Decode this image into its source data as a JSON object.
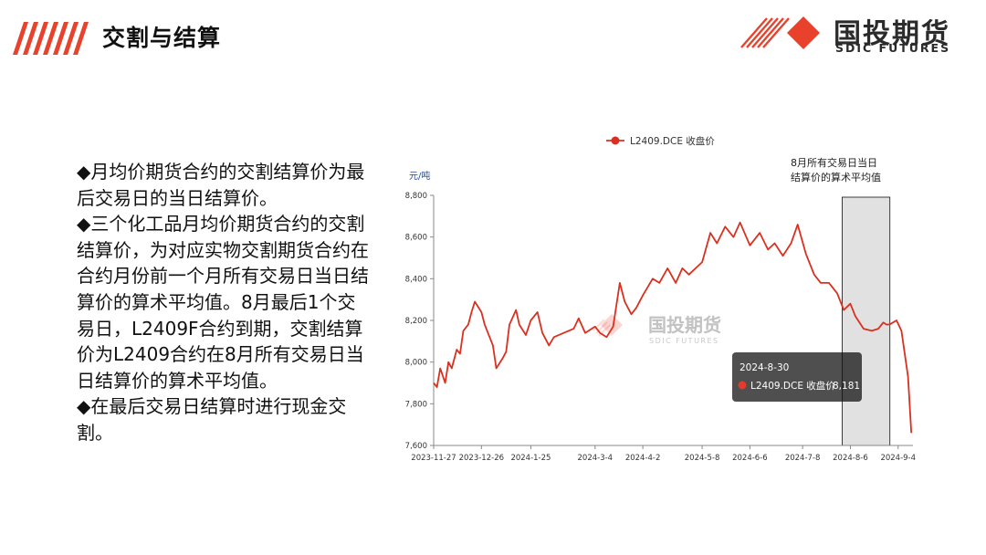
{
  "header": {
    "title": "交割与结算",
    "accent_color": "#e8412c"
  },
  "logo": {
    "name_cn": "国投期货",
    "name_en": "SDIC FUTURES"
  },
  "bullets": [
    "◆月均价期货合约的交割结算价为最后交易日的当日结算价。",
    "◆三个化工品月均价期货合约的交割结算价，为对应实物交割期货合约在合约月份前一个月所有交易日当日结算价的算术平均值。8月最后1个交易日，L2409F合约到期，交割结算价为L2409合约在8月所有交易日当日结算价的算术平均值。",
    "◆在最后交易日结算时进行现金交割。"
  ],
  "chart_data": {
    "type": "line",
    "ylabel": "元/吨",
    "ylim": [
      7600,
      8800
    ],
    "yticks": [
      7600,
      7800,
      8000,
      8200,
      8400,
      8600,
      8800
    ],
    "ytick_labels": [
      "7,600",
      "7,800",
      "8,000",
      "8,200",
      "8,400",
      "8,600",
      "8,800"
    ],
    "xlim": [
      "2023-11-27",
      "2024-09-13"
    ],
    "xticks": [
      "2023-11-27",
      "2023-12-26",
      "2024-01-25",
      "2024-03-04",
      "2024-04-02",
      "2024-05-08",
      "2024-06-06",
      "2024-07-08",
      "2024-08-06",
      "2024-09-04"
    ],
    "xtick_labels": [
      "2023-11-27",
      "2023-12-26",
      "2024-1-25",
      "2024-3-4",
      "2024-4-2",
      "2024-5-8",
      "2024-6-6",
      "2024-7-8",
      "2024-8-6",
      "2024-9-4"
    ],
    "legend_position": "top-center",
    "watermark": "国投期货",
    "watermark_en": "SDIC FUTURES",
    "series": [
      {
        "name": "L2409.DCE 收盘价",
        "color": "#d9301f",
        "points": [
          [
            "2023-11-27",
            7900
          ],
          [
            "2023-11-29",
            7880
          ],
          [
            "2023-12-01",
            7970
          ],
          [
            "2023-12-04",
            7900
          ],
          [
            "2023-12-06",
            8000
          ],
          [
            "2023-12-08",
            7970
          ],
          [
            "2023-12-11",
            8060
          ],
          [
            "2023-12-13",
            8040
          ],
          [
            "2023-12-15",
            8150
          ],
          [
            "2023-12-18",
            8180
          ],
          [
            "2023-12-20",
            8240
          ],
          [
            "2023-12-22",
            8290
          ],
          [
            "2023-12-26",
            8240
          ],
          [
            "2023-12-28",
            8180
          ],
          [
            "2024-01-02",
            8080
          ],
          [
            "2024-01-04",
            7970
          ],
          [
            "2024-01-08",
            8020
          ],
          [
            "2024-01-10",
            8050
          ],
          [
            "2024-01-12",
            8180
          ],
          [
            "2024-01-16",
            8250
          ],
          [
            "2024-01-18",
            8180
          ],
          [
            "2024-01-22",
            8130
          ],
          [
            "2024-01-25",
            8200
          ],
          [
            "2024-01-29",
            8240
          ],
          [
            "2024-02-01",
            8140
          ],
          [
            "2024-02-05",
            8080
          ],
          [
            "2024-02-08",
            8120
          ],
          [
            "2024-02-20",
            8160
          ],
          [
            "2024-02-23",
            8210
          ],
          [
            "2024-02-27",
            8140
          ],
          [
            "2024-03-04",
            8170
          ],
          [
            "2024-03-07",
            8140
          ],
          [
            "2024-03-11",
            8120
          ],
          [
            "2024-03-15",
            8170
          ],
          [
            "2024-03-19",
            8380
          ],
          [
            "2024-03-22",
            8290
          ],
          [
            "2024-03-26",
            8230
          ],
          [
            "2024-03-29",
            8260
          ],
          [
            "2024-04-02",
            8320
          ],
          [
            "2024-04-08",
            8400
          ],
          [
            "2024-04-12",
            8380
          ],
          [
            "2024-04-17",
            8450
          ],
          [
            "2024-04-22",
            8380
          ],
          [
            "2024-04-26",
            8450
          ],
          [
            "2024-04-30",
            8420
          ],
          [
            "2024-05-08",
            8480
          ],
          [
            "2024-05-13",
            8620
          ],
          [
            "2024-05-17",
            8570
          ],
          [
            "2024-05-22",
            8650
          ],
          [
            "2024-05-27",
            8600
          ],
          [
            "2024-05-31",
            8670
          ],
          [
            "2024-06-06",
            8560
          ],
          [
            "2024-06-12",
            8620
          ],
          [
            "2024-06-17",
            8540
          ],
          [
            "2024-06-21",
            8570
          ],
          [
            "2024-06-26",
            8510
          ],
          [
            "2024-07-01",
            8570
          ],
          [
            "2024-07-05",
            8660
          ],
          [
            "2024-07-10",
            8520
          ],
          [
            "2024-07-15",
            8420
          ],
          [
            "2024-07-19",
            8380
          ],
          [
            "2024-07-24",
            8380
          ],
          [
            "2024-07-29",
            8330
          ],
          [
            "2024-08-02",
            8250
          ],
          [
            "2024-08-06",
            8280
          ],
          [
            "2024-08-09",
            8220
          ],
          [
            "2024-08-14",
            8160
          ],
          [
            "2024-08-19",
            8150
          ],
          [
            "2024-08-23",
            8160
          ],
          [
            "2024-08-26",
            8190
          ],
          [
            "2024-08-28",
            8180
          ],
          [
            "2024-08-30",
            8181
          ],
          [
            "2024-09-03",
            8200
          ],
          [
            "2024-09-06",
            8150
          ],
          [
            "2024-09-10",
            7930
          ],
          [
            "2024-09-12",
            7660
          ]
        ]
      }
    ],
    "highlight": {
      "from": "2024-08-01",
      "to": "2024-08-30",
      "label_lines": [
        "8月所有交易日当日",
        "结算价的算术平均值"
      ]
    },
    "tooltip": {
      "date": "2024-8-30",
      "series_name": "L2409.DCE 收盘价",
      "value": "8,181"
    }
  }
}
